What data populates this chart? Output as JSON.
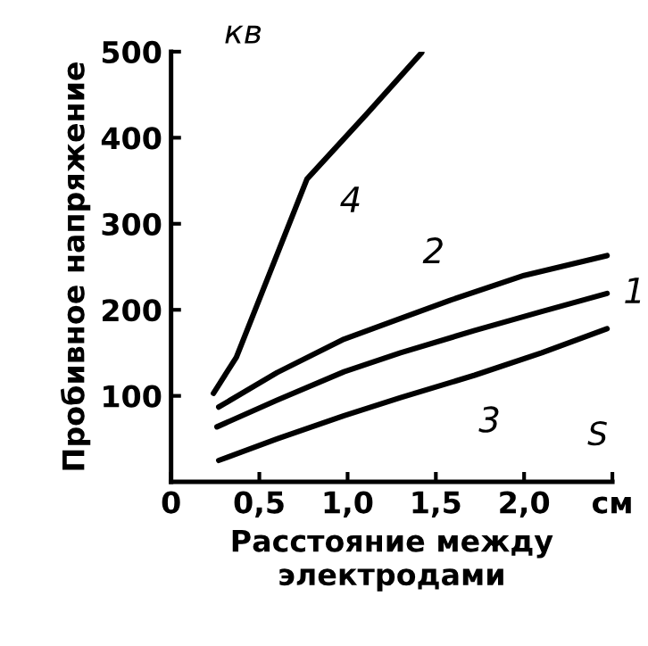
{
  "chart_data": {
    "type": "line",
    "xlabel": "Расстояние между\nэлектродами",
    "ylabel": "Пробивное напряжение",
    "series": [
      {
        "color": "#000000",
        "x": [
          0.26,
          0.6,
          0.98,
          1.3,
          1.72,
          2.1,
          2.47
        ],
        "values": [
          64,
          95,
          128,
          150,
          176,
          198,
          219
        ]
      },
      {
        "color": "#000000",
        "x": [
          0.27,
          0.6,
          0.98,
          1.3,
          1.58,
          2.0,
          2.47
        ],
        "values": [
          87,
          127,
          166,
          190,
          211,
          240,
          263
        ]
      },
      {
        "color": "#000000",
        "x": [
          0.27,
          0.6,
          0.98,
          1.3,
          1.72,
          2.1,
          2.47
        ],
        "values": [
          25,
          50,
          77,
          98,
          124,
          150,
          178
        ]
      },
      {
        "color": "#000000",
        "x": [
          0.24,
          0.37,
          0.77,
          1.11,
          1.42
        ],
        "values": [
          103,
          145,
          352,
          428,
          499
        ]
      }
    ],
    "xlim": [
      0,
      2.5
    ],
    "ylim": [
      0,
      500
    ],
    "xticks": [
      0,
      {
        "value": 0.5,
        "label": "0,5"
      },
      {
        "value": 1.0,
        "label": "1,0"
      },
      {
        "value": 1.5,
        "label": "1,5"
      },
      {
        "value": 2.0,
        "label": "2,0"
      },
      {
        "value": 2.5,
        "label": "см"
      }
    ],
    "yticks": [
      100,
      200,
      300,
      400,
      500
    ],
    "grid": false,
    "legend": false,
    "marker": "none",
    "line_style": "solid",
    "annotations": [
      "кв",
      "S",
      {
        "text": "1",
        "x": 2.47,
        "y": 219
      },
      {
        "text": "2",
        "x": 1.58,
        "y": 211
      },
      {
        "text": "3",
        "x": 1.72,
        "y": 124
      },
      {
        "text": "4",
        "x": 0.77,
        "y": 352
      }
    ]
  }
}
